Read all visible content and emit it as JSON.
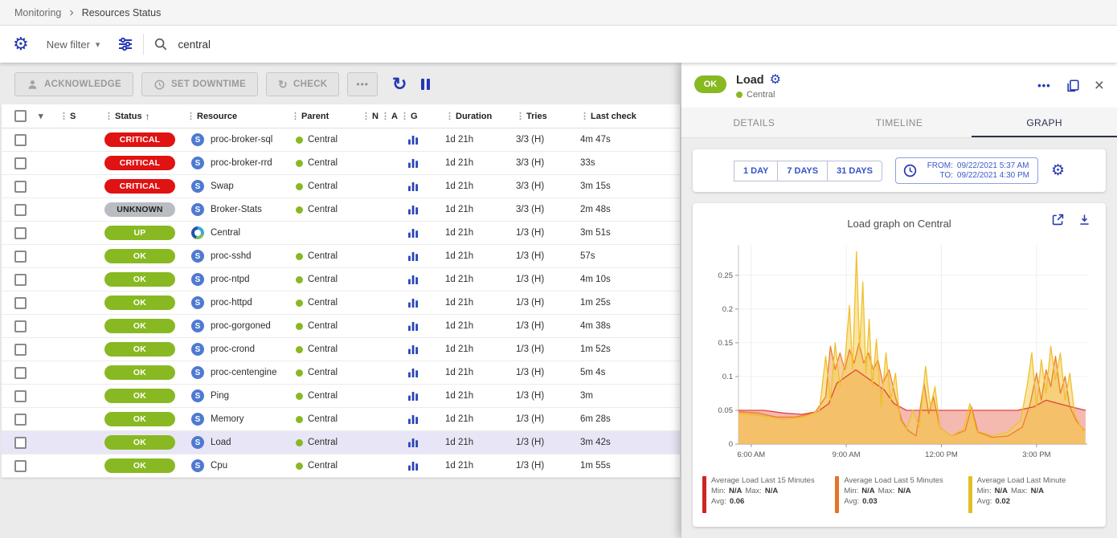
{
  "breadcrumb": {
    "section": "Monitoring",
    "page": "Resources Status"
  },
  "icons": {
    "drag": "⋮",
    "sort_asc": "↑",
    "caret_down": "▾",
    "chevron_right": "›",
    "more_h": "•••",
    "refresh": "↻",
    "gear": "⚙",
    "close": "×",
    "check_refresh": "↻"
  },
  "colors": {
    "accent_blue": "#2438b5",
    "ok_green": "#88b922",
    "critical_red": "#e01212",
    "unknown_gray": "#b9bcc0",
    "selected_row": "#e8e6f6"
  },
  "filterbar": {
    "new_filter": "New filter",
    "search_value": "central"
  },
  "toolbar": {
    "acknowledge": "ACKNOWLEDGE",
    "set_downtime": "SET DOWNTIME",
    "check": "CHECK"
  },
  "table": {
    "header": {
      "s": "S",
      "status": "Status",
      "resource": "Resource",
      "parent": "Parent",
      "n": "N",
      "a": "A",
      "g": "G",
      "duration": "Duration",
      "tries": "Tries",
      "last_check": "Last check"
    },
    "rows": [
      {
        "status": "CRITICAL",
        "type": "critical",
        "service_icon": "S",
        "resource": "proc-broker-sql",
        "parent": "Central",
        "duration": "1d 21h",
        "tries": "3/3 (H)",
        "last_check": "4m 47s"
      },
      {
        "status": "CRITICAL",
        "type": "critical",
        "service_icon": "S",
        "resource": "proc-broker-rrd",
        "parent": "Central",
        "duration": "1d 21h",
        "tries": "3/3 (H)",
        "last_check": "33s"
      },
      {
        "status": "CRITICAL",
        "type": "critical",
        "service_icon": "S",
        "resource": "Swap",
        "parent": "Central",
        "duration": "1d 21h",
        "tries": "3/3 (H)",
        "last_check": "3m 15s"
      },
      {
        "status": "UNKNOWN",
        "type": "unknown",
        "service_icon": "S",
        "resource": "Broker-Stats",
        "parent": "Central",
        "duration": "1d 21h",
        "tries": "3/3 (H)",
        "last_check": "2m 48s"
      },
      {
        "status": "UP",
        "type": "up",
        "host_icon": true,
        "resource": "Central",
        "parent": "",
        "duration": "1d 21h",
        "tries": "1/3 (H)",
        "last_check": "3m 51s"
      },
      {
        "status": "OK",
        "type": "ok",
        "service_icon": "S",
        "resource": "proc-sshd",
        "parent": "Central",
        "duration": "1d 21h",
        "tries": "1/3 (H)",
        "last_check": "57s"
      },
      {
        "status": "OK",
        "type": "ok",
        "service_icon": "S",
        "resource": "proc-ntpd",
        "parent": "Central",
        "duration": "1d 21h",
        "tries": "1/3 (H)",
        "last_check": "4m 10s"
      },
      {
        "status": "OK",
        "type": "ok",
        "service_icon": "S",
        "resource": "proc-httpd",
        "parent": "Central",
        "duration": "1d 21h",
        "tries": "1/3 (H)",
        "last_check": "1m 25s"
      },
      {
        "status": "OK",
        "type": "ok",
        "service_icon": "S",
        "resource": "proc-gorgoned",
        "parent": "Central",
        "duration": "1d 21h",
        "tries": "1/3 (H)",
        "last_check": "4m 38s"
      },
      {
        "status": "OK",
        "type": "ok",
        "service_icon": "S",
        "resource": "proc-crond",
        "parent": "Central",
        "duration": "1d 21h",
        "tries": "1/3 (H)",
        "last_check": "1m 52s"
      },
      {
        "status": "OK",
        "type": "ok",
        "service_icon": "S",
        "resource": "proc-centengine",
        "parent": "Central",
        "duration": "1d 21h",
        "tries": "1/3 (H)",
        "last_check": "5m 4s"
      },
      {
        "status": "OK",
        "type": "ok",
        "service_icon": "S",
        "resource": "Ping",
        "parent": "Central",
        "duration": "1d 21h",
        "tries": "1/3 (H)",
        "last_check": "3m"
      },
      {
        "status": "OK",
        "type": "ok",
        "service_icon": "S",
        "resource": "Memory",
        "parent": "Central",
        "duration": "1d 21h",
        "tries": "1/3 (H)",
        "last_check": "6m 28s"
      },
      {
        "status": "OK",
        "type": "ok",
        "service_icon": "S",
        "resource": "Load",
        "parent": "Central",
        "duration": "1d 21h",
        "tries": "1/3 (H)",
        "last_check": "3m 42s",
        "selected": true
      },
      {
        "status": "OK",
        "type": "ok",
        "service_icon": "S",
        "resource": "Cpu",
        "parent": "Central",
        "duration": "1d 21h",
        "tries": "1/3 (H)",
        "last_check": "1m 55s"
      }
    ]
  },
  "panel": {
    "status": "OK",
    "title": "Load",
    "parent": "Central",
    "tabs": [
      {
        "label": "DETAILS",
        "active": false
      },
      {
        "label": "TIMELINE",
        "active": false
      },
      {
        "label": "GRAPH",
        "active": true
      }
    ],
    "ranges": [
      "1 DAY",
      "7 DAYS",
      "31 DAYS"
    ],
    "from_label": "FROM:",
    "from_value": "09/22/2021 5:37 AM",
    "to_label": "TO:",
    "to_value": "09/22/2021 4:30 PM",
    "graph_title": "Load graph on Central",
    "legend": [
      {
        "color": "#d02423",
        "label": "Average Load Last 15 Minutes",
        "min_label": "Min:",
        "min": "N/A",
        "max_label": "Max:",
        "max": "N/A",
        "avg_label": "Avg:",
        "avg": "0.06"
      },
      {
        "color": "#e4732a",
        "label": "Average Load Last 5 Minutes",
        "min_label": "Min:",
        "min": "N/A",
        "max_label": "Max:",
        "max": "N/A",
        "avg_label": "Avg:",
        "avg": "0.03"
      },
      {
        "color": "#e6bd24",
        "label": "Average Load Last Minute",
        "min_label": "Min:",
        "min": "N/A",
        "max_label": "Max:",
        "max": "N/A",
        "avg_label": "Avg:",
        "avg": "0.02"
      }
    ]
  },
  "chart_data": {
    "type": "area",
    "title": "Load graph on Central",
    "xlabel": "",
    "ylabel": "",
    "xlim": [
      5.6,
      16.6
    ],
    "ylim": [
      0,
      0.295
    ],
    "x_ticks": [
      {
        "value": 6,
        "label": "6:00 AM"
      },
      {
        "value": 9,
        "label": "9:00 AM"
      },
      {
        "value": 12,
        "label": "12:00 PM"
      },
      {
        "value": 15,
        "label": "3:00 PM"
      }
    ],
    "y_ticks": [
      0,
      0.05,
      0.1,
      0.15,
      0.2,
      0.25
    ],
    "y_tick_labels": [
      "0",
      "0.05",
      "0.1",
      "0.15",
      "0.2",
      "0.25"
    ],
    "series": [
      {
        "name": "Average Load Last 15 Minutes",
        "color": "#e0433a",
        "fill": "rgba(236,138,125,0.6)",
        "points": [
          [
            5.6,
            0.05
          ],
          [
            6.4,
            0.05
          ],
          [
            7.0,
            0.046
          ],
          [
            7.6,
            0.044
          ],
          [
            8.1,
            0.048
          ],
          [
            8.45,
            0.06
          ],
          [
            8.7,
            0.09
          ],
          [
            9.0,
            0.1
          ],
          [
            9.3,
            0.11
          ],
          [
            9.6,
            0.1
          ],
          [
            9.9,
            0.09
          ],
          [
            10.2,
            0.08
          ],
          [
            10.5,
            0.06
          ],
          [
            10.9,
            0.05
          ],
          [
            11.4,
            0.05
          ],
          [
            12.0,
            0.05
          ],
          [
            12.8,
            0.05
          ],
          [
            13.6,
            0.05
          ],
          [
            14.4,
            0.05
          ],
          [
            14.9,
            0.055
          ],
          [
            15.3,
            0.065
          ],
          [
            15.7,
            0.06
          ],
          [
            16.1,
            0.055
          ],
          [
            16.55,
            0.05
          ]
        ]
      },
      {
        "name": "Average Load Last 5 Minutes",
        "color": "#ec7f2b",
        "fill": "rgba(240,158,75,0.5)",
        "points": [
          [
            5.6,
            0.048
          ],
          [
            6.2,
            0.046
          ],
          [
            6.8,
            0.04
          ],
          [
            7.4,
            0.04
          ],
          [
            8.0,
            0.046
          ],
          [
            8.35,
            0.07
          ],
          [
            8.5,
            0.145
          ],
          [
            8.65,
            0.11
          ],
          [
            8.8,
            0.135
          ],
          [
            8.95,
            0.11
          ],
          [
            9.1,
            0.14
          ],
          [
            9.25,
            0.12
          ],
          [
            9.4,
            0.15
          ],
          [
            9.55,
            0.12
          ],
          [
            9.7,
            0.135
          ],
          [
            9.85,
            0.11
          ],
          [
            10.0,
            0.125
          ],
          [
            10.15,
            0.09
          ],
          [
            10.35,
            0.11
          ],
          [
            10.55,
            0.07
          ],
          [
            10.75,
            0.035
          ],
          [
            10.95,
            0.02
          ],
          [
            11.2,
            0.012
          ],
          [
            11.45,
            0.09
          ],
          [
            11.6,
            0.045
          ],
          [
            11.75,
            0.07
          ],
          [
            11.95,
            0.025
          ],
          [
            12.3,
            0.012
          ],
          [
            12.75,
            0.02
          ],
          [
            12.95,
            0.055
          ],
          [
            13.15,
            0.018
          ],
          [
            13.6,
            0.01
          ],
          [
            14.1,
            0.012
          ],
          [
            14.55,
            0.025
          ],
          [
            14.8,
            0.06
          ],
          [
            15.0,
            0.105
          ],
          [
            15.15,
            0.065
          ],
          [
            15.3,
            0.11
          ],
          [
            15.45,
            0.085
          ],
          [
            15.6,
            0.13
          ],
          [
            15.75,
            0.075
          ],
          [
            15.9,
            0.1
          ],
          [
            16.05,
            0.055
          ],
          [
            16.25,
            0.035
          ],
          [
            16.5,
            0.02
          ]
        ]
      },
      {
        "name": "Average Load Last Minute",
        "color": "#f0c02e",
        "fill": "rgba(246,210,88,0.55)",
        "points": [
          [
            5.6,
            0.045
          ],
          [
            6.3,
            0.042
          ],
          [
            7.0,
            0.036
          ],
          [
            7.7,
            0.04
          ],
          [
            8.15,
            0.05
          ],
          [
            8.35,
            0.13
          ],
          [
            8.5,
            0.065
          ],
          [
            8.65,
            0.15
          ],
          [
            8.8,
            0.085
          ],
          [
            8.95,
            0.12
          ],
          [
            9.1,
            0.205
          ],
          [
            9.2,
            0.11
          ],
          [
            9.32,
            0.285
          ],
          [
            9.42,
            0.14
          ],
          [
            9.52,
            0.24
          ],
          [
            9.62,
            0.105
          ],
          [
            9.72,
            0.185
          ],
          [
            9.82,
            0.085
          ],
          [
            9.95,
            0.155
          ],
          [
            10.1,
            0.055
          ],
          [
            10.25,
            0.135
          ],
          [
            10.4,
            0.065
          ],
          [
            10.55,
            0.105
          ],
          [
            10.7,
            0.035
          ],
          [
            10.9,
            0.022
          ],
          [
            11.1,
            0.05
          ],
          [
            11.3,
            0.025
          ],
          [
            11.5,
            0.115
          ],
          [
            11.65,
            0.055
          ],
          [
            11.8,
            0.085
          ],
          [
            11.95,
            0.025
          ],
          [
            12.3,
            0.012
          ],
          [
            12.7,
            0.022
          ],
          [
            12.9,
            0.06
          ],
          [
            13.1,
            0.02
          ],
          [
            13.6,
            0.012
          ],
          [
            14.1,
            0.018
          ],
          [
            14.5,
            0.035
          ],
          [
            14.7,
            0.085
          ],
          [
            14.85,
            0.135
          ],
          [
            15.0,
            0.055
          ],
          [
            15.15,
            0.125
          ],
          [
            15.3,
            0.075
          ],
          [
            15.45,
            0.145
          ],
          [
            15.6,
            0.095
          ],
          [
            15.75,
            0.135
          ],
          [
            15.9,
            0.065
          ],
          [
            16.05,
            0.105
          ],
          [
            16.2,
            0.045
          ],
          [
            16.4,
            0.025
          ],
          [
            16.55,
            0.02
          ]
        ]
      }
    ]
  }
}
